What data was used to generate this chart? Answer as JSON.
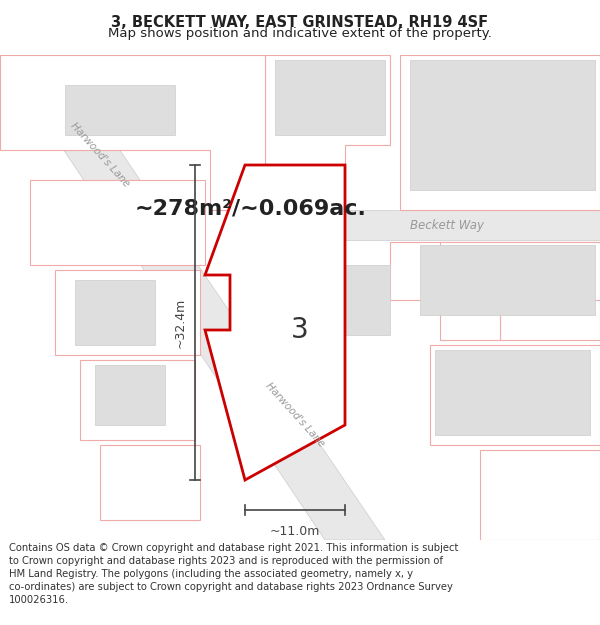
{
  "title_line1": "3, BECKETT WAY, EAST GRINSTEAD, RH19 4SF",
  "title_line2": "Map shows position and indicative extent of the property.",
  "footer_text": "Contains OS data © Crown copyright and database right 2021. This information is subject\nto Crown copyright and database rights 2023 and is reproduced with the permission of\nHM Land Registry. The polygons (including the associated geometry, namely x, y\nco-ordinates) are subject to Crown copyright and database rights 2023 Ordnance Survey\n100026316.",
  "map_bg": "#ffffff",
  "plot_fill": "#ffffff",
  "plot_stroke": "#cc0000",
  "building_fill": "#dedede",
  "boundary_color": "#f0aaaa",
  "road_fill": "#e8e8e8",
  "road_label_color": "#999999",
  "measure_color": "#444444",
  "area_text": "~278m²/~0.069ac.",
  "road_label_beckett": "Beckett Way",
  "road_label_harwood1": "Harwood's Lane",
  "road_label_harwood2": "Harwood's Lane",
  "dim_width": "~11.0m",
  "dim_height": "~32.4m",
  "plot_label": "3",
  "title_fontsize": 10.5,
  "subtitle_fontsize": 9.5,
  "footer_fontsize": 7.2,
  "area_fontsize": 16,
  "road_label_fontsize": 8.5,
  "harwood_label_fontsize": 7.5,
  "plot_label_fontsize": 20,
  "dim_fontsize": 9
}
